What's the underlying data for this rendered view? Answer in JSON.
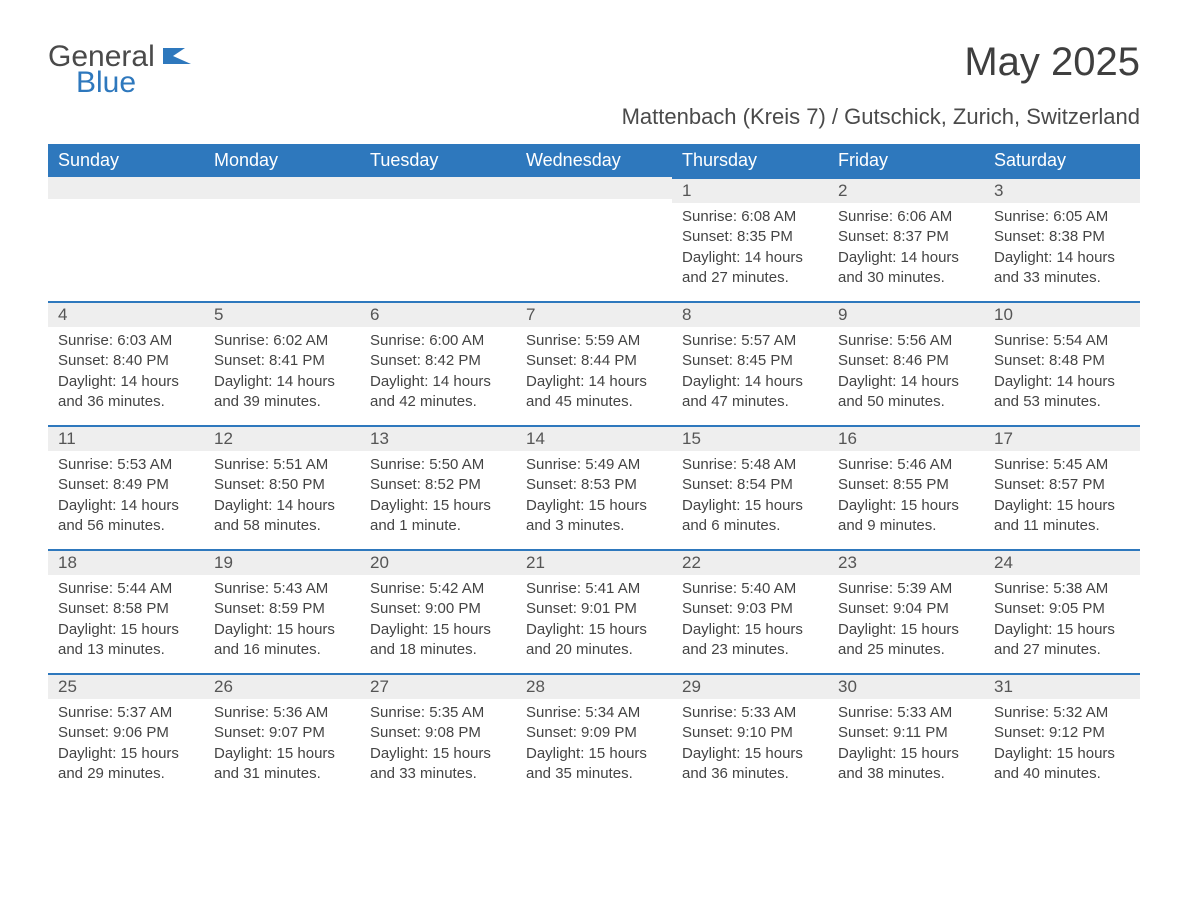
{
  "logo": {
    "word1": "General",
    "word2": "Blue",
    "icon_color": "#2e78bd"
  },
  "title": "May 2025",
  "subtitle": "Mattenbach (Kreis 7) / Gutschick, Zurich, Switzerland",
  "colors": {
    "header_bg": "#2e78bd",
    "header_fg": "#ffffff",
    "daynum_bg": "#eeeeee",
    "row_border": "#2e78bd",
    "text": "#444444"
  },
  "weekdays": [
    "Sunday",
    "Monday",
    "Tuesday",
    "Wednesday",
    "Thursday",
    "Friday",
    "Saturday"
  ],
  "first_day_col": 4,
  "days": [
    {
      "n": 1,
      "sunrise": "6:08 AM",
      "sunset": "8:35 PM",
      "daylight": "14 hours and 27 minutes."
    },
    {
      "n": 2,
      "sunrise": "6:06 AM",
      "sunset": "8:37 PM",
      "daylight": "14 hours and 30 minutes."
    },
    {
      "n": 3,
      "sunrise": "6:05 AM",
      "sunset": "8:38 PM",
      "daylight": "14 hours and 33 minutes."
    },
    {
      "n": 4,
      "sunrise": "6:03 AM",
      "sunset": "8:40 PM",
      "daylight": "14 hours and 36 minutes."
    },
    {
      "n": 5,
      "sunrise": "6:02 AM",
      "sunset": "8:41 PM",
      "daylight": "14 hours and 39 minutes."
    },
    {
      "n": 6,
      "sunrise": "6:00 AM",
      "sunset": "8:42 PM",
      "daylight": "14 hours and 42 minutes."
    },
    {
      "n": 7,
      "sunrise": "5:59 AM",
      "sunset": "8:44 PM",
      "daylight": "14 hours and 45 minutes."
    },
    {
      "n": 8,
      "sunrise": "5:57 AM",
      "sunset": "8:45 PM",
      "daylight": "14 hours and 47 minutes."
    },
    {
      "n": 9,
      "sunrise": "5:56 AM",
      "sunset": "8:46 PM",
      "daylight": "14 hours and 50 minutes."
    },
    {
      "n": 10,
      "sunrise": "5:54 AM",
      "sunset": "8:48 PM",
      "daylight": "14 hours and 53 minutes."
    },
    {
      "n": 11,
      "sunrise": "5:53 AM",
      "sunset": "8:49 PM",
      "daylight": "14 hours and 56 minutes."
    },
    {
      "n": 12,
      "sunrise": "5:51 AM",
      "sunset": "8:50 PM",
      "daylight": "14 hours and 58 minutes."
    },
    {
      "n": 13,
      "sunrise": "5:50 AM",
      "sunset": "8:52 PM",
      "daylight": "15 hours and 1 minute."
    },
    {
      "n": 14,
      "sunrise": "5:49 AM",
      "sunset": "8:53 PM",
      "daylight": "15 hours and 3 minutes."
    },
    {
      "n": 15,
      "sunrise": "5:48 AM",
      "sunset": "8:54 PM",
      "daylight": "15 hours and 6 minutes."
    },
    {
      "n": 16,
      "sunrise": "5:46 AM",
      "sunset": "8:55 PM",
      "daylight": "15 hours and 9 minutes."
    },
    {
      "n": 17,
      "sunrise": "5:45 AM",
      "sunset": "8:57 PM",
      "daylight": "15 hours and 11 minutes."
    },
    {
      "n": 18,
      "sunrise": "5:44 AM",
      "sunset": "8:58 PM",
      "daylight": "15 hours and 13 minutes."
    },
    {
      "n": 19,
      "sunrise": "5:43 AM",
      "sunset": "8:59 PM",
      "daylight": "15 hours and 16 minutes."
    },
    {
      "n": 20,
      "sunrise": "5:42 AM",
      "sunset": "9:00 PM",
      "daylight": "15 hours and 18 minutes."
    },
    {
      "n": 21,
      "sunrise": "5:41 AM",
      "sunset": "9:01 PM",
      "daylight": "15 hours and 20 minutes."
    },
    {
      "n": 22,
      "sunrise": "5:40 AM",
      "sunset": "9:03 PM",
      "daylight": "15 hours and 23 minutes."
    },
    {
      "n": 23,
      "sunrise": "5:39 AM",
      "sunset": "9:04 PM",
      "daylight": "15 hours and 25 minutes."
    },
    {
      "n": 24,
      "sunrise": "5:38 AM",
      "sunset": "9:05 PM",
      "daylight": "15 hours and 27 minutes."
    },
    {
      "n": 25,
      "sunrise": "5:37 AM",
      "sunset": "9:06 PM",
      "daylight": "15 hours and 29 minutes."
    },
    {
      "n": 26,
      "sunrise": "5:36 AM",
      "sunset": "9:07 PM",
      "daylight": "15 hours and 31 minutes."
    },
    {
      "n": 27,
      "sunrise": "5:35 AM",
      "sunset": "9:08 PM",
      "daylight": "15 hours and 33 minutes."
    },
    {
      "n": 28,
      "sunrise": "5:34 AM",
      "sunset": "9:09 PM",
      "daylight": "15 hours and 35 minutes."
    },
    {
      "n": 29,
      "sunrise": "5:33 AM",
      "sunset": "9:10 PM",
      "daylight": "15 hours and 36 minutes."
    },
    {
      "n": 30,
      "sunrise": "5:33 AM",
      "sunset": "9:11 PM",
      "daylight": "15 hours and 38 minutes."
    },
    {
      "n": 31,
      "sunrise": "5:32 AM",
      "sunset": "9:12 PM",
      "daylight": "15 hours and 40 minutes."
    }
  ],
  "labels": {
    "sunrise": "Sunrise: ",
    "sunset": "Sunset: ",
    "daylight": "Daylight: "
  }
}
